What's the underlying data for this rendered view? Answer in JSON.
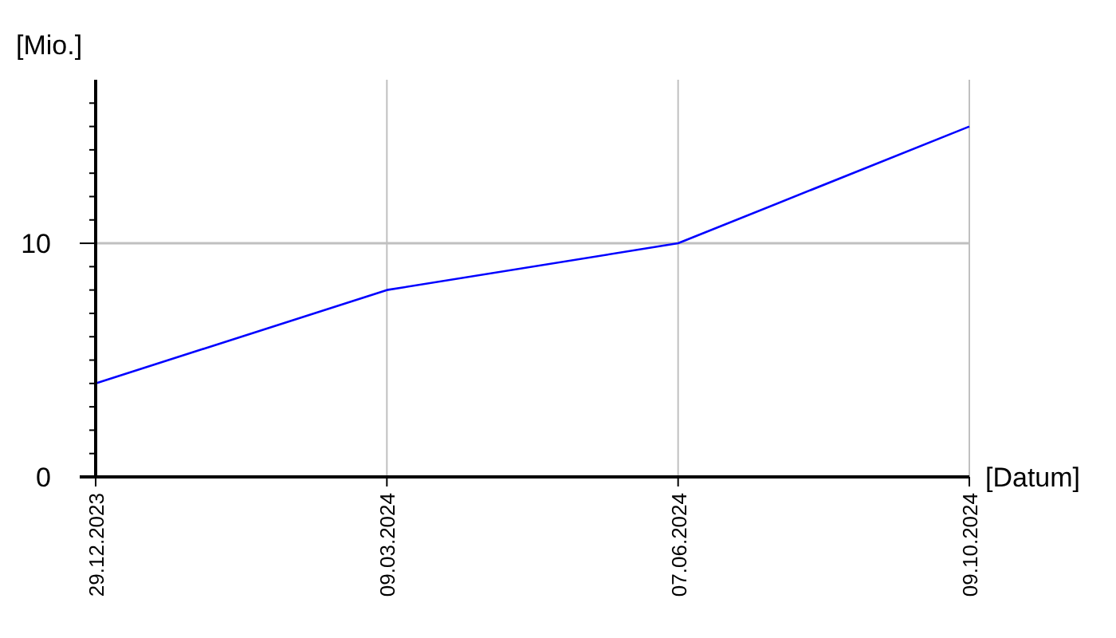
{
  "chart_data": {
    "type": "line",
    "xlabel": "[Datum]",
    "ylabel": "[Mio.]",
    "categories": [
      "29.12.2023",
      "09.03.2024",
      "07.06.2024",
      "09.10.2024"
    ],
    "series": [
      {
        "color": "#0000ff",
        "values": [
          4,
          8,
          10,
          15
        ]
      }
    ],
    "ylim": [
      0,
      17
    ],
    "yticks": [
      0,
      {
        "value": 1,
        "label": null
      },
      {
        "value": 2,
        "label": null
      },
      {
        "value": 3,
        "label": null
      },
      {
        "value": 4,
        "label": null
      },
      {
        "value": 5,
        "label": null
      },
      {
        "value": 6,
        "label": null
      },
      {
        "value": 7,
        "label": null
      },
      {
        "value": 8,
        "label": null
      },
      {
        "value": 9,
        "label": null
      },
      10,
      {
        "value": 11,
        "label": null
      },
      {
        "value": 12,
        "label": null
      },
      {
        "value": 13,
        "label": null
      },
      {
        "value": 14,
        "label": null
      },
      {
        "value": 15,
        "label": null
      },
      {
        "value": 16,
        "label": null
      }
    ],
    "grid": "x",
    "ref_lines": [
      {
        "axis": "y",
        "value": 10,
        "color": "#c0c0c0"
      }
    ],
    "marker": "none",
    "line_style": "solid"
  }
}
